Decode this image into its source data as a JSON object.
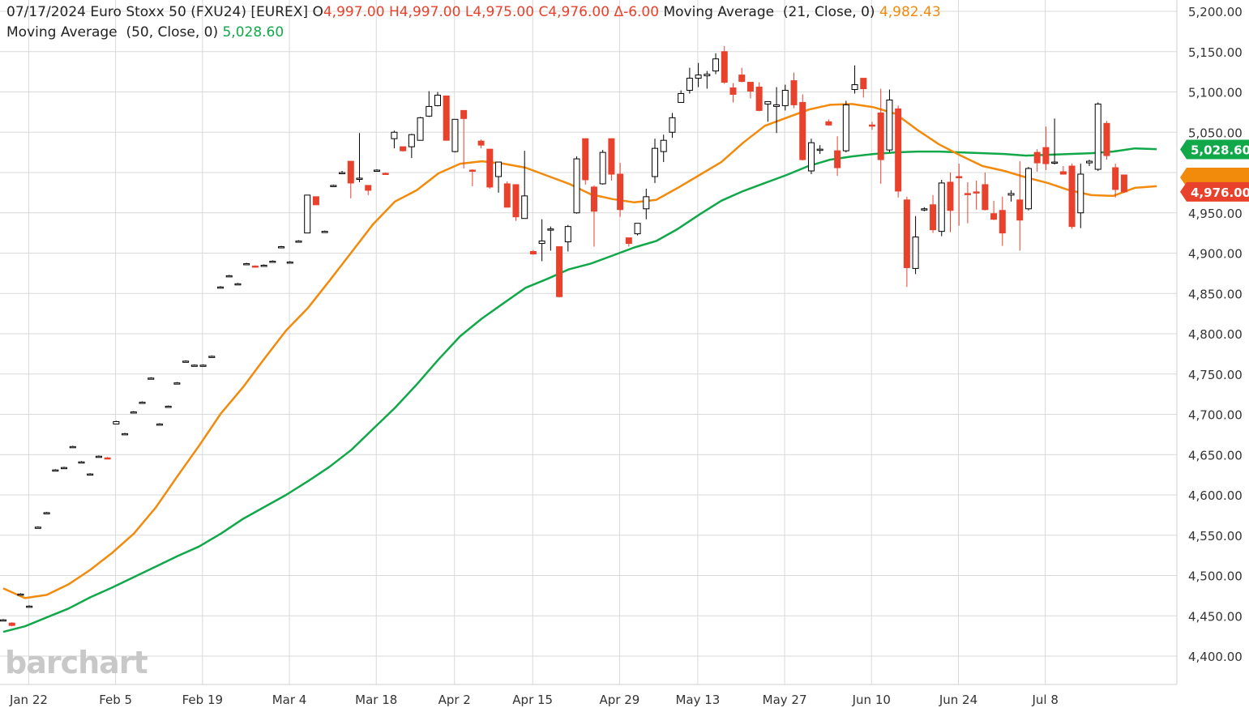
{
  "header": {
    "date": "07/17/2024",
    "instrument": "Euro Stoxx 50 (FXU24) [EUREX]",
    "open_label": "O",
    "open": "4,997.00",
    "high": "H4,997.00",
    "low": "L4,975.00",
    "close": "C4,976.00",
    "change": "Δ-6.00",
    "ma21_label": "Moving Average  (21, Close, 0)",
    "ma21_value": "4,982.43",
    "ma50_label": "Moving Average  (50, Close, 0)",
    "ma50_value": "5,028.60"
  },
  "watermark": "barchart",
  "colors": {
    "up": "#000000",
    "down": "#e8412c",
    "ma21": "#f28a0b",
    "ma50": "#11a84a",
    "grid": "#d9d9d9",
    "price_badge": "#e8412c",
    "ma50_badge": "#11a84a"
  },
  "badges": {
    "ma50": "5,028.60",
    "price": "4,976.00"
  },
  "chart_data": {
    "type": "candlestick",
    "y_axis_side": "right",
    "ylim": [
      4380,
      5220
    ],
    "yticks": [
      "5,200.00",
      "5,150.00",
      "5,100.00",
      "5,050.00",
      "5,000.00",
      "4,950.00",
      "4,900.00",
      "4,850.00",
      "4,800.00",
      "4,750.00",
      "4,700.00",
      "4,650.00",
      "4,600.00",
      "4,550.00",
      "4,500.00",
      "4,450.00",
      "4,400.00"
    ],
    "ytick_values": [
      5200,
      5150,
      5100,
      5050,
      5000,
      4950,
      4900,
      4850,
      4800,
      4750,
      4700,
      4650,
      4600,
      4550,
      4500,
      4450,
      4400
    ],
    "xticks": [
      {
        "label": "Jan 22",
        "index": 2
      },
      {
        "label": "Feb 5",
        "index": 12
      },
      {
        "label": "Feb 19",
        "index": 22
      },
      {
        "label": "Mar 4",
        "index": 32
      },
      {
        "label": "Mar 18",
        "index": 42
      },
      {
        "label": "Apr 2",
        "index": 51
      },
      {
        "label": "Apr 15",
        "index": 60
      },
      {
        "label": "Apr 29",
        "index": 70
      },
      {
        "label": "May 13",
        "index": 79
      },
      {
        "label": "May 27",
        "index": 89
      },
      {
        "label": "Jun 10",
        "index": 99
      },
      {
        "label": "Jun 24",
        "index": 109
      },
      {
        "label": "Jul 8",
        "index": 119
      }
    ],
    "candles": [
      [
        4445,
        4446,
        4444,
        4445
      ],
      [
        4441,
        4442,
        4437,
        4438
      ],
      [
        4477,
        4478,
        4476,
        4477
      ],
      [
        4462,
        4463,
        4461,
        4462
      ],
      [
        4560,
        4561,
        4559,
        4560
      ],
      [
        4578,
        4579,
        4577,
        4578
      ],
      [
        4631,
        4632,
        4630,
        4631
      ],
      [
        4634,
        4635,
        4633,
        4634
      ],
      [
        4660,
        4661,
        4659,
        4660
      ],
      [
        4641,
        4642,
        4640,
        4641
      ],
      [
        4626,
        4627,
        4625,
        4626
      ],
      [
        4648,
        4649,
        4647,
        4648
      ],
      [
        4646,
        4647,
        4645,
        4645
      ],
      [
        4688,
        4692,
        4688,
        4691
      ],
      [
        4676,
        4677,
        4675,
        4676
      ],
      [
        4703,
        4704,
        4702,
        4703
      ],
      [
        4715,
        4716,
        4714,
        4715
      ],
      [
        4745,
        4746,
        4744,
        4745
      ],
      [
        4688,
        4689,
        4687,
        4688
      ],
      [
        4710,
        4711,
        4709,
        4710
      ],
      [
        4739,
        4740,
        4738,
        4739
      ],
      [
        4766,
        4767,
        4765,
        4766
      ],
      [
        4761,
        4762,
        4760,
        4761
      ],
      [
        4761,
        4762,
        4760,
        4761
      ],
      [
        4772,
        4773,
        4771,
        4772
      ],
      [
        4858,
        4859,
        4857,
        4858
      ],
      [
        4872,
        4873,
        4871,
        4872
      ],
      [
        4862,
        4863,
        4861,
        4862
      ],
      [
        4887,
        4888,
        4886,
        4887
      ],
      [
        4884,
        4885,
        4883,
        4883
      ],
      [
        4885,
        4886,
        4884,
        4885
      ],
      [
        4890,
        4891,
        4889,
        4890
      ],
      [
        4908,
        4909,
        4907,
        4908
      ],
      [
        4889,
        4890,
        4888,
        4889
      ],
      [
        4915,
        4916,
        4914,
        4915
      ],
      [
        4925,
        4972,
        4925,
        4972
      ],
      [
        4970,
        4970,
        4960,
        4960
      ],
      [
        4927,
        4928,
        4926,
        4927
      ],
      [
        4984,
        4985,
        4983,
        4984
      ],
      [
        5000,
        5002,
        4998,
        5000
      ],
      [
        5014,
        5014,
        4968,
        4987
      ],
      [
        4992,
        5049,
        4988,
        4993
      ],
      [
        4984,
        4984,
        4972,
        4978
      ],
      [
        5003,
        5004,
        5001,
        5003
      ],
      [
        4999,
        5000,
        4997,
        4998
      ],
      [
        5042,
        5052,
        5030,
        5050
      ],
      [
        5032,
        5032,
        5026,
        5027
      ],
      [
        5032,
        5048,
        5018,
        5047
      ],
      [
        5040,
        5069,
        5040,
        5068
      ],
      [
        5070,
        5101,
        5069,
        5082
      ],
      [
        5083,
        5100,
        5082,
        5096
      ],
      [
        5095,
        5095,
        5040,
        5040
      ],
      [
        5026,
        5066,
        5025,
        5066
      ],
      [
        5077,
        5077,
        5005,
        5067
      ],
      [
        5003,
        5004,
        4983,
        5002
      ],
      [
        5039,
        5041,
        5030,
        5034
      ],
      [
        5029,
        5029,
        4980,
        4982
      ],
      [
        4995,
        5013,
        4975,
        5013
      ],
      [
        4986,
        4989,
        4957,
        4957
      ],
      [
        4985,
        4985,
        4940,
        4945
      ],
      [
        4943,
        5027,
        4943,
        4971
      ],
      [
        4902,
        4904,
        4898,
        4899
      ],
      [
        4912,
        4942,
        4890,
        4915
      ],
      [
        4930,
        4933,
        4903,
        4930
      ],
      [
        4908,
        4908,
        4845,
        4846
      ],
      [
        4914,
        4935,
        4902,
        4933
      ],
      [
        4950,
        5020,
        4949,
        5017
      ],
      [
        5042,
        5042,
        4985,
        4991
      ],
      [
        4982,
        4984,
        4908,
        4952
      ],
      [
        4986,
        5028,
        4985,
        5025
      ],
      [
        5042,
        5042,
        4990,
        4998
      ],
      [
        4998,
        5012,
        4945,
        4954
      ],
      [
        4919,
        4919,
        4908,
        4912
      ],
      [
        4924,
        4929,
        4922,
        4937
      ],
      [
        4955,
        4980,
        4942,
        4970
      ],
      [
        4995,
        5042,
        4987,
        5030
      ],
      [
        5026,
        5047,
        5013,
        5040
      ],
      [
        5050,
        5074,
        5043,
        5068
      ],
      [
        5087,
        5102,
        5088,
        5098
      ],
      [
        5102,
        5130,
        5098,
        5117
      ],
      [
        5117,
        5136,
        5106,
        5121
      ],
      [
        5120,
        5126,
        5104,
        5122
      ],
      [
        5126,
        5148,
        5122,
        5141
      ],
      [
        5150,
        5157,
        5110,
        5112
      ],
      [
        5105,
        5111,
        5087,
        5097
      ],
      [
        5121,
        5130,
        5112,
        5113
      ],
      [
        5112,
        5112,
        5092,
        5101
      ],
      [
        5106,
        5112,
        5076,
        5077
      ],
      [
        5085,
        5088,
        5063,
        5088
      ],
      [
        5082,
        5106,
        5049,
        5084
      ],
      [
        5083,
        5109,
        5077,
        5102
      ],
      [
        5114,
        5124,
        5080,
        5084
      ],
      [
        5087,
        5097,
        5015,
        5016
      ],
      [
        5002,
        5042,
        4998,
        5037
      ],
      [
        5028,
        5034,
        5023,
        5029
      ],
      [
        5063,
        5066,
        5058,
        5059
      ],
      [
        5027,
        5045,
        4996,
        5006
      ],
      [
        5027,
        5089,
        5025,
        5084
      ],
      [
        5103,
        5133,
        5098,
        5109
      ],
      [
        5117,
        5117,
        5093,
        5104
      ],
      [
        5059,
        5063,
        5053,
        5058
      ],
      [
        5074,
        5104,
        4986,
        5016
      ],
      [
        5028,
        5103,
        5025,
        5090
      ],
      [
        5079,
        5083,
        4969,
        4977
      ],
      [
        4966,
        4970,
        4858,
        4882
      ],
      [
        4881,
        4946,
        4874,
        4920
      ],
      [
        4955,
        4957,
        4952,
        4955
      ],
      [
        4960,
        4972,
        4925,
        4929
      ],
      [
        4927,
        4991,
        4921,
        4987
      ],
      [
        4988,
        5000,
        4926,
        4953
      ],
      [
        4995,
        5011,
        4934,
        4994
      ],
      [
        4974,
        4988,
        4937,
        4973
      ],
      [
        4976,
        4990,
        4954,
        4975
      ],
      [
        4985,
        5000,
        4953,
        4954
      ],
      [
        4949,
        4965,
        4941,
        4942
      ],
      [
        4953,
        4970,
        4909,
        4925
      ],
      [
        4972,
        4978,
        4964,
        4974
      ],
      [
        4966,
        5014,
        4903,
        4941
      ],
      [
        4955,
        5007,
        4953,
        5005
      ],
      [
        5025,
        5029,
        5001,
        5012
      ],
      [
        5031,
        5057,
        5003,
        5011
      ],
      [
        5012,
        5067,
        5010,
        5013
      ],
      [
        5001,
        5008,
        5000,
        4998
      ],
      [
        5008,
        5011,
        4930,
        4933
      ],
      [
        4950,
        5011,
        4931,
        4998
      ],
      [
        5012,
        5016,
        5008,
        5014
      ],
      [
        5004,
        5087,
        5002,
        5085
      ],
      [
        5061,
        5064,
        5016,
        5021
      ],
      [
        5006,
        5011,
        4969,
        4979
      ],
      [
        4997,
        4997,
        4975,
        4976
      ]
    ],
    "ma21": [
      [
        0,
        4484
      ],
      [
        3,
        4472
      ],
      [
        6,
        4476
      ],
      [
        9,
        4489
      ],
      [
        12,
        4507
      ],
      [
        15,
        4528
      ],
      [
        18,
        4552
      ],
      [
        21,
        4584
      ],
      [
        24,
        4623
      ],
      [
        27,
        4661
      ],
      [
        30,
        4701
      ],
      [
        33,
        4733
      ],
      [
        36,
        4769
      ],
      [
        39,
        4804
      ],
      [
        42,
        4832
      ],
      [
        45,
        4866
      ],
      [
        48,
        4901
      ],
      [
        51,
        4936
      ],
      [
        54,
        4964
      ],
      [
        57,
        4978
      ],
      [
        60,
        4999
      ],
      [
        63,
        5011
      ],
      [
        66,
        5014
      ],
      [
        69,
        5011
      ],
      [
        72,
        5006
      ],
      [
        75,
        4996
      ],
      [
        78,
        4986
      ],
      [
        81,
        4973
      ],
      [
        84,
        4967
      ],
      [
        87,
        4963
      ],
      [
        90,
        4966
      ],
      [
        93,
        4981
      ],
      [
        96,
        4997
      ],
      [
        99,
        5013
      ],
      [
        102,
        5037
      ],
      [
        105,
        5058
      ],
      [
        108,
        5068
      ],
      [
        111,
        5078
      ],
      [
        114,
        5084
      ],
      [
        117,
        5085
      ],
      [
        120,
        5081
      ],
      [
        123,
        5073
      ],
      [
        126,
        5053
      ],
      [
        129,
        5035
      ],
      [
        132,
        5021
      ],
      [
        135,
        5008
      ],
      [
        138,
        5002
      ],
      [
        141,
        4994
      ],
      [
        144,
        4987
      ],
      [
        147,
        4978
      ],
      [
        150,
        4972
      ],
      [
        153,
        4971
      ],
      [
        156,
        4981
      ],
      [
        159,
        4983
      ]
    ],
    "ma50": [
      [
        0,
        4430
      ],
      [
        3,
        4437
      ],
      [
        6,
        4448
      ],
      [
        9,
        4459
      ],
      [
        12,
        4473
      ],
      [
        15,
        4485
      ],
      [
        18,
        4498
      ],
      [
        21,
        4511
      ],
      [
        24,
        4524
      ],
      [
        27,
        4536
      ],
      [
        30,
        4552
      ],
      [
        33,
        4570
      ],
      [
        36,
        4585
      ],
      [
        39,
        4600
      ],
      [
        42,
        4617
      ],
      [
        45,
        4635
      ],
      [
        48,
        4656
      ],
      [
        51,
        4682
      ],
      [
        54,
        4708
      ],
      [
        57,
        4737
      ],
      [
        60,
        4768
      ],
      [
        63,
        4797
      ],
      [
        66,
        4819
      ],
      [
        69,
        4838
      ],
      [
        72,
        4857
      ],
      [
        75,
        4868
      ],
      [
        78,
        4880
      ],
      [
        81,
        4887
      ],
      [
        84,
        4897
      ],
      [
        87,
        4907
      ],
      [
        90,
        4915
      ],
      [
        93,
        4930
      ],
      [
        96,
        4948
      ],
      [
        99,
        4965
      ],
      [
        102,
        4977
      ],
      [
        105,
        4987
      ],
      [
        108,
        4997
      ],
      [
        111,
        5008
      ],
      [
        114,
        5016
      ],
      [
        117,
        5020
      ],
      [
        120,
        5023
      ],
      [
        123,
        5025
      ],
      [
        126,
        5026
      ],
      [
        129,
        5026
      ],
      [
        132,
        5025
      ],
      [
        135,
        5024
      ],
      [
        138,
        5023
      ],
      [
        141,
        5021
      ],
      [
        144,
        5022
      ],
      [
        147,
        5023
      ],
      [
        150,
        5024
      ],
      [
        153,
        5026
      ],
      [
        156,
        5030
      ],
      [
        159,
        5029
      ]
    ]
  }
}
